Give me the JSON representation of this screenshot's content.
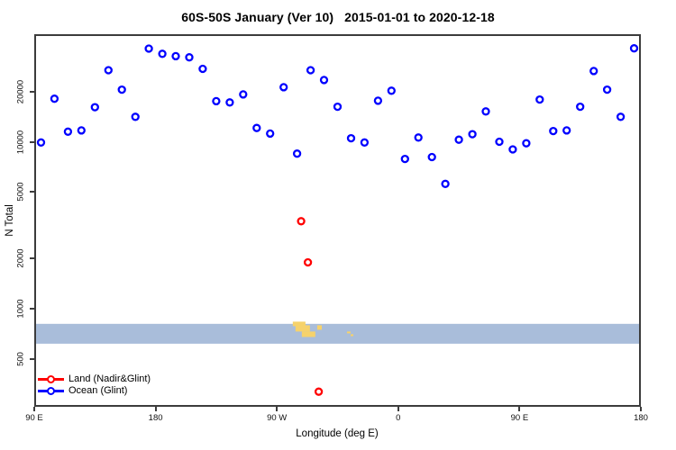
{
  "chart_data": {
    "type": "scatter",
    "title": "60S-50S January (Ver 10)   2015-01-01 to 2020-12-18",
    "xlabel": "Longitude (deg E)",
    "ylabel": "N Total",
    "xlim": [
      90,
      540
    ],
    "ylim": [
      260,
      44000
    ],
    "yscale": "log",
    "grid": false,
    "legend_position": "bottom-left",
    "axis_color": "#3c3c3c",
    "x_ticks": [
      {
        "value": 90,
        "label": "90 E"
      },
      {
        "value": 180,
        "label": "180"
      },
      {
        "value": 270,
        "label": "90 W"
      },
      {
        "value": 360,
        "label": "0"
      },
      {
        "value": 450,
        "label": "90 E"
      },
      {
        "value": 540,
        "label": "180"
      }
    ],
    "y_ticks": [
      {
        "value": 500,
        "label": "500"
      },
      {
        "value": 1000,
        "label": "1000"
      },
      {
        "value": 2000,
        "label": "2000"
      },
      {
        "value": 5000,
        "label": "5000"
      },
      {
        "value": 10000,
        "label": "10000"
      },
      {
        "value": 20000,
        "label": "20000"
      }
    ],
    "series": [
      {
        "name": "Land (Nadir&Glint)",
        "color": "#ff0000",
        "marker": "open-circle",
        "points": [
          [
            288,
            3350
          ],
          [
            293,
            1900
          ],
          [
            301,
            320
          ]
        ]
      },
      {
        "name": "Ocean (Glint)",
        "color": "#0000ff",
        "marker": "open-circle",
        "points": [
          [
            95,
            9900
          ],
          [
            105,
            18100
          ],
          [
            115,
            11500
          ],
          [
            125,
            11700
          ],
          [
            135,
            16100
          ],
          [
            145,
            26800
          ],
          [
            155,
            20500
          ],
          [
            165,
            14100
          ],
          [
            175,
            36100
          ],
          [
            185,
            33600
          ],
          [
            195,
            32500
          ],
          [
            205,
            32000
          ],
          [
            215,
            27300
          ],
          [
            225,
            17500
          ],
          [
            235,
            17200
          ],
          [
            245,
            19200
          ],
          [
            255,
            12100
          ],
          [
            265,
            11200
          ],
          [
            275,
            21200
          ],
          [
            285,
            8500
          ],
          [
            295,
            26800
          ],
          [
            305,
            23400
          ],
          [
            315,
            16200
          ],
          [
            325,
            10500
          ],
          [
            335,
            9900
          ],
          [
            345,
            17600
          ],
          [
            355,
            20200
          ],
          [
            365,
            7900
          ],
          [
            375,
            10600
          ],
          [
            385,
            8100
          ],
          [
            395,
            5600
          ],
          [
            405,
            10300
          ],
          [
            415,
            11100
          ],
          [
            425,
            15200
          ],
          [
            435,
            10000
          ],
          [
            445,
            9000
          ],
          [
            455,
            9800
          ],
          [
            465,
            17900
          ],
          [
            475,
            11600
          ],
          [
            485,
            11700
          ],
          [
            495,
            16200
          ],
          [
            505,
            26500
          ],
          [
            515,
            20500
          ],
          [
            525,
            14100
          ],
          [
            535,
            36200
          ]
        ]
      }
    ],
    "map_strip": {
      "description": "60S-50S latitude strip: ocean band with land patches",
      "ocean_color": "#a9bdda",
      "land_color": "#f6d26b",
      "value_range": [
        620,
        815
      ],
      "land_patches": [
        {
          "lon": [
            281.8,
            291.2
          ],
          "val": [
            789,
            840
          ]
        },
        {
          "lon": [
            283.8,
            294.5
          ],
          "val": [
            733,
            799
          ]
        },
        {
          "lon": [
            288.5,
            298.5
          ],
          "val": [
            680,
            733
          ]
        },
        {
          "lon": [
            299.9,
            303.3
          ],
          "val": [
            751,
            799
          ]
        },
        {
          "lon": [
            322.0,
            324.7
          ],
          "val": [
            715,
            733
          ]
        },
        {
          "lon": [
            324.7,
            326.7
          ],
          "val": [
            688,
            706
          ]
        }
      ]
    }
  }
}
